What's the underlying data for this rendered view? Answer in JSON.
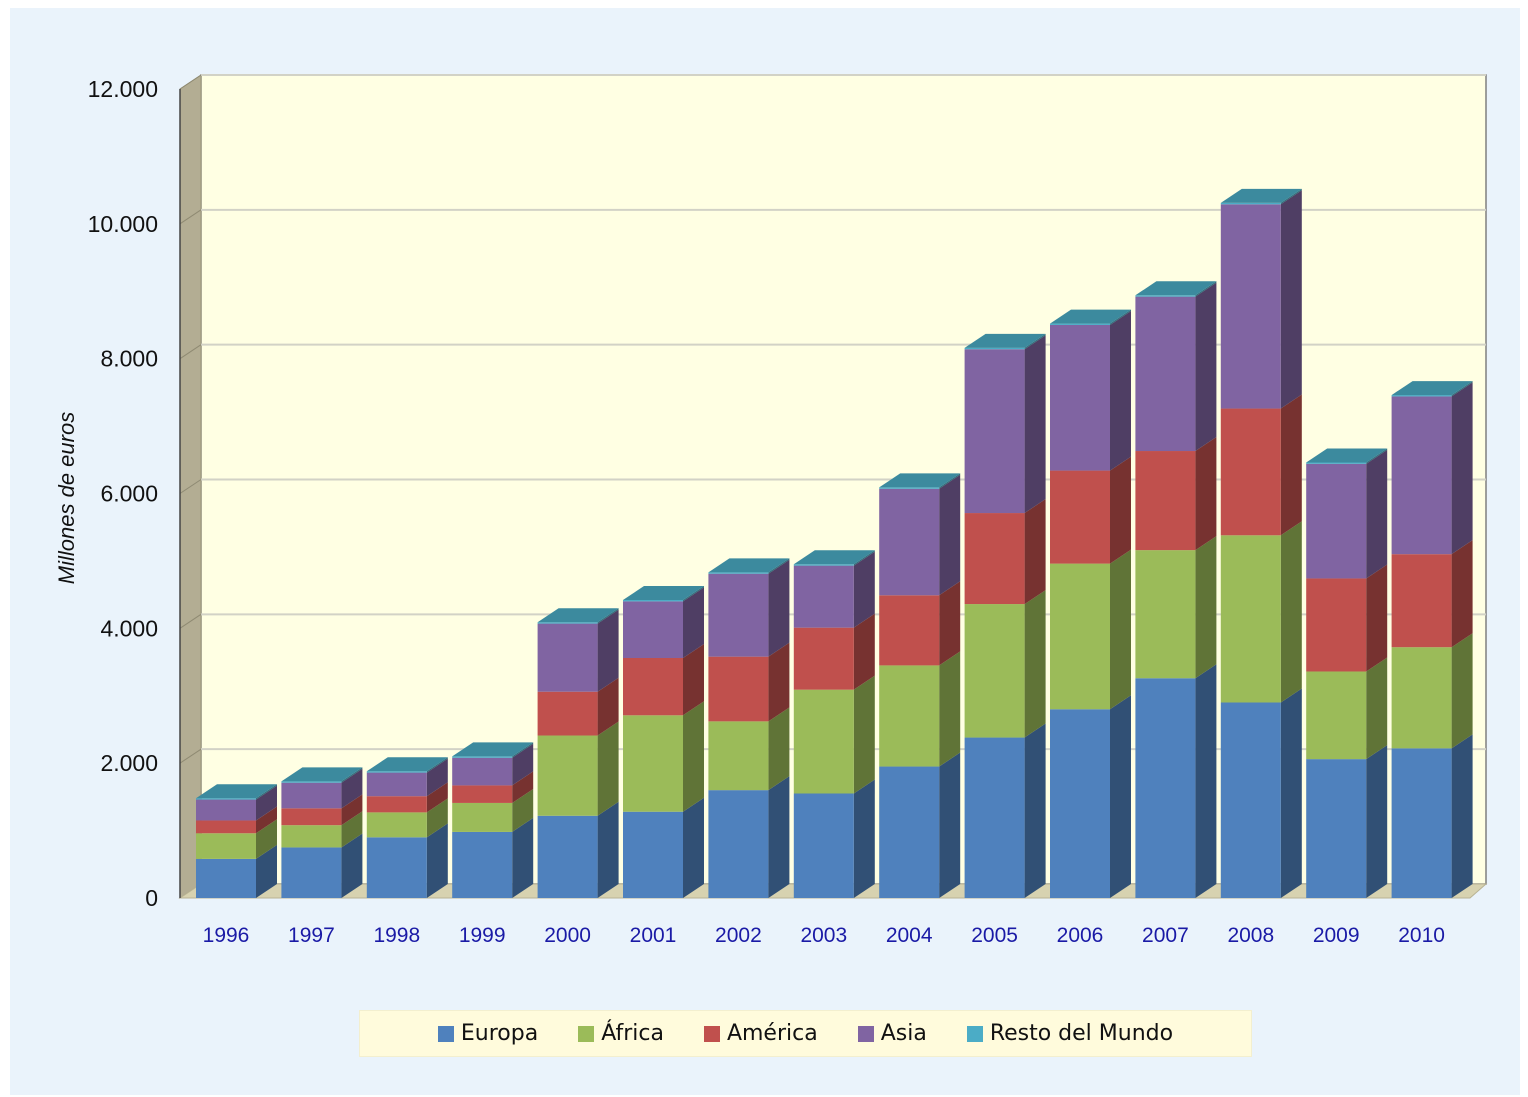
{
  "chart_data": {
    "type": "bar",
    "stacked": true,
    "style": "3d",
    "title": "",
    "xlabel": "",
    "ylabel": "Millones de euros",
    "ylim": [
      0,
      12000
    ],
    "yticks": [
      0,
      2000,
      4000,
      6000,
      8000,
      10000,
      12000
    ],
    "ytick_labels": [
      "0",
      "2.000",
      "4.000",
      "6.000",
      "8.000",
      "10.000",
      "12.000"
    ],
    "grid": true,
    "legend_position": "bottom",
    "categories": [
      "1996",
      "1997",
      "1998",
      "1999",
      "2000",
      "2001",
      "2002",
      "2003",
      "2004",
      "2005",
      "2006",
      "2007",
      "2008",
      "2009",
      "2010"
    ],
    "series": [
      {
        "name": "Europa",
        "color": "#4f81bd",
        "values": [
          580,
          750,
          900,
          980,
          1220,
          1280,
          1600,
          1550,
          1950,
          2380,
          2800,
          3260,
          2900,
          2060,
          2220
        ]
      },
      {
        "name": "África",
        "color": "#9bbb59",
        "values": [
          380,
          330,
          370,
          430,
          1190,
          1430,
          1020,
          1540,
          1500,
          1980,
          2160,
          1900,
          2480,
          1300,
          1500
        ]
      },
      {
        "name": "América",
        "color": "#c0504d",
        "values": [
          190,
          250,
          240,
          260,
          650,
          850,
          960,
          920,
          1040,
          1350,
          1380,
          1470,
          1880,
          1380,
          1380
        ]
      },
      {
        "name": "Asia",
        "color": "#8064a2",
        "values": [
          310,
          380,
          350,
          410,
          1010,
          840,
          1230,
          920,
          1580,
          2430,
          2160,
          2290,
          3030,
          1700,
          2340
        ]
      },
      {
        "name": "Resto del Mundo",
        "color": "#4bacc6",
        "values": [
          20,
          20,
          20,
          20,
          20,
          20,
          20,
          20,
          20,
          20,
          20,
          20,
          20,
          20,
          20
        ]
      }
    ]
  }
}
